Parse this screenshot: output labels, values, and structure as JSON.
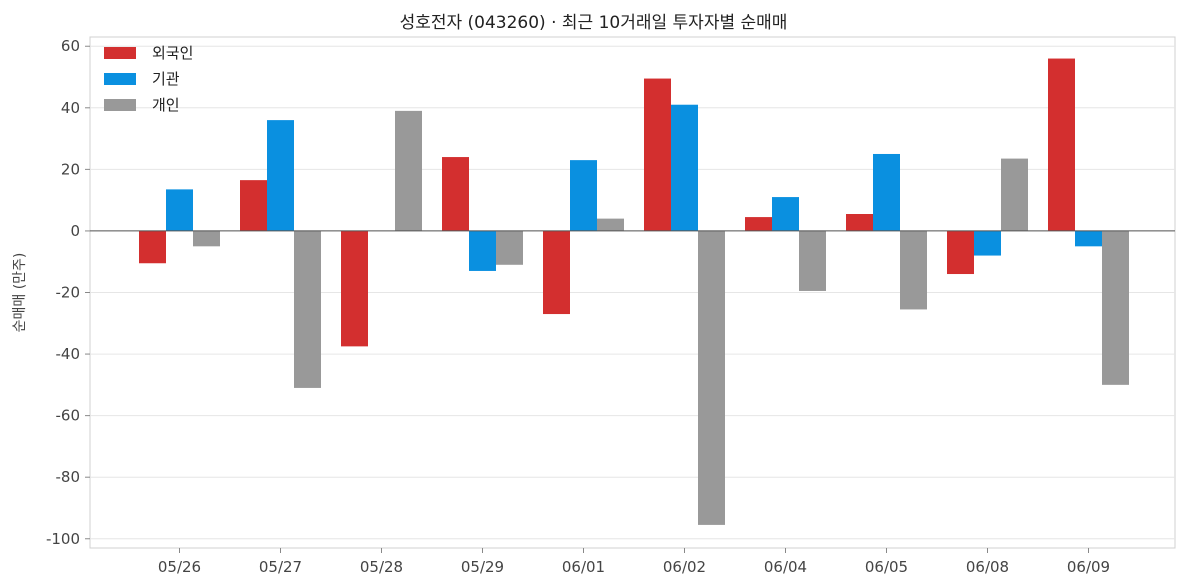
{
  "chart_data": {
    "type": "bar",
    "title": "성호전자 (043260) · 최근 10거래일 투자자별 순매매",
    "xlabel": "",
    "ylabel": "순매매 (만주)",
    "ylim": [
      -103,
      63
    ],
    "yticks": [
      -100,
      -80,
      -60,
      -40,
      -20,
      0,
      20,
      40,
      60
    ],
    "categories": [
      "05/26",
      "05/27",
      "05/28",
      "05/29",
      "06/01",
      "06/02",
      "06/04",
      "06/05",
      "06/08",
      "06/09"
    ],
    "series": [
      {
        "name": "외국인",
        "color": "#d32f2f",
        "values": [
          -10.5,
          16.5,
          -37.5,
          24,
          -27,
          49.5,
          4.5,
          5.5,
          -14,
          56
        ]
      },
      {
        "name": "기관",
        "color": "#0a90e0",
        "values": [
          13.5,
          36,
          0,
          -13,
          23,
          41,
          11,
          25,
          -8,
          -5
        ]
      },
      {
        "name": "개인",
        "color": "#999999",
        "values": [
          -5,
          -51,
          39,
          -11,
          4,
          -95.5,
          -19.5,
          -25.5,
          23.5,
          -50
        ]
      }
    ],
    "grid": true,
    "legend_position": "top-left"
  }
}
